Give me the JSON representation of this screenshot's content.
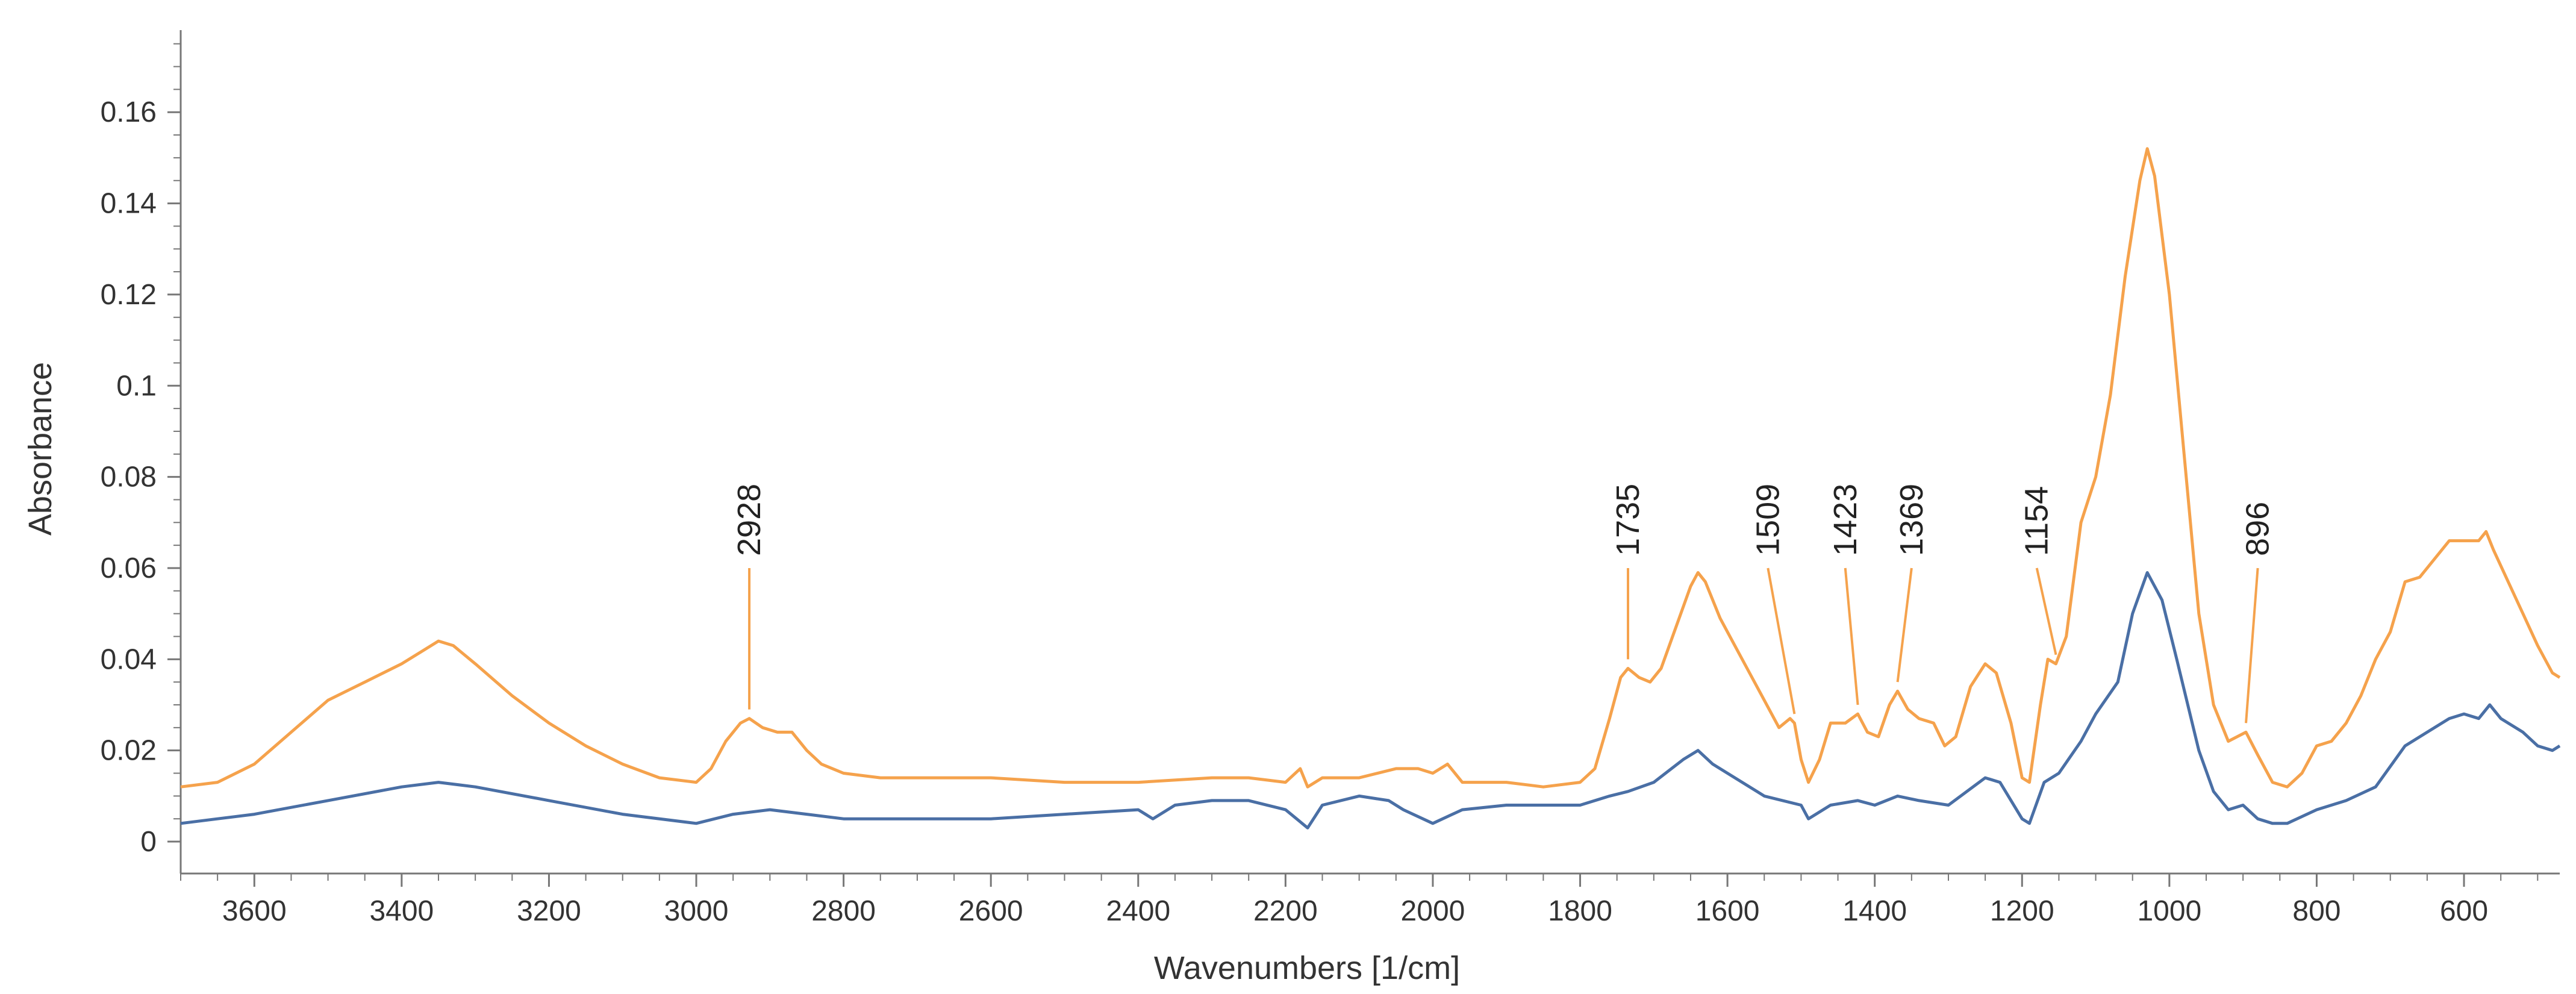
{
  "chart_data": {
    "type": "line",
    "title": "",
    "xlabel": "Wavenumbers [1/cm]",
    "ylabel": "Absorbance",
    "xlim": [
      3700,
      470
    ],
    "ylim": [
      -0.007,
      0.178
    ],
    "x_reversed": true,
    "grid": false,
    "x_ticks": [
      3600,
      3400,
      3200,
      3000,
      2800,
      2600,
      2400,
      2200,
      2000,
      1800,
      1600,
      1400,
      1200,
      1000,
      800,
      600
    ],
    "y_ticks": [
      {
        "value": 0,
        "label": "0"
      },
      {
        "value": 0.02,
        "label": "0.02"
      },
      {
        "value": 0.04,
        "label": "0.04"
      },
      {
        "value": 0.06,
        "label": "0.06"
      },
      {
        "value": 0.08,
        "label": "0.08"
      },
      {
        "value": 0.1,
        "label": "0.1"
      },
      {
        "value": 0.12,
        "label": "0.12"
      },
      {
        "value": 0.14,
        "label": "0.14"
      },
      {
        "value": 0.16,
        "label": "0.16"
      }
    ],
    "series": [
      {
        "color": "#f5a24c",
        "points": [
          [
            3700,
            0.012
          ],
          [
            3650,
            0.013
          ],
          [
            3600,
            0.017
          ],
          [
            3550,
            0.024
          ],
          [
            3500,
            0.031
          ],
          [
            3450,
            0.035
          ],
          [
            3400,
            0.039
          ],
          [
            3370,
            0.042
          ],
          [
            3350,
            0.044
          ],
          [
            3330,
            0.043
          ],
          [
            3300,
            0.039
          ],
          [
            3250,
            0.032
          ],
          [
            3200,
            0.026
          ],
          [
            3150,
            0.021
          ],
          [
            3100,
            0.017
          ],
          [
            3050,
            0.014
          ],
          [
            3000,
            0.013
          ],
          [
            2980,
            0.016
          ],
          [
            2960,
            0.022
          ],
          [
            2940,
            0.026
          ],
          [
            2928,
            0.027
          ],
          [
            2910,
            0.025
          ],
          [
            2890,
            0.024
          ],
          [
            2870,
            0.024
          ],
          [
            2850,
            0.02
          ],
          [
            2830,
            0.017
          ],
          [
            2800,
            0.015
          ],
          [
            2750,
            0.014
          ],
          [
            2700,
            0.014
          ],
          [
            2600,
            0.014
          ],
          [
            2500,
            0.013
          ],
          [
            2400,
            0.013
          ],
          [
            2300,
            0.014
          ],
          [
            2250,
            0.014
          ],
          [
            2200,
            0.013
          ],
          [
            2180,
            0.016
          ],
          [
            2170,
            0.012
          ],
          [
            2150,
            0.014
          ],
          [
            2100,
            0.014
          ],
          [
            2050,
            0.016
          ],
          [
            2020,
            0.016
          ],
          [
            2000,
            0.015
          ],
          [
            1980,
            0.017
          ],
          [
            1960,
            0.013
          ],
          [
            1900,
            0.013
          ],
          [
            1850,
            0.012
          ],
          [
            1800,
            0.013
          ],
          [
            1780,
            0.016
          ],
          [
            1760,
            0.027
          ],
          [
            1745,
            0.036
          ],
          [
            1735,
            0.038
          ],
          [
            1720,
            0.036
          ],
          [
            1705,
            0.035
          ],
          [
            1690,
            0.038
          ],
          [
            1670,
            0.047
          ],
          [
            1650,
            0.056
          ],
          [
            1640,
            0.059
          ],
          [
            1630,
            0.057
          ],
          [
            1610,
            0.049
          ],
          [
            1590,
            0.043
          ],
          [
            1570,
            0.037
          ],
          [
            1550,
            0.031
          ],
          [
            1530,
            0.025
          ],
          [
            1515,
            0.027
          ],
          [
            1509,
            0.026
          ],
          [
            1500,
            0.018
          ],
          [
            1490,
            0.013
          ],
          [
            1475,
            0.018
          ],
          [
            1460,
            0.026
          ],
          [
            1440,
            0.026
          ],
          [
            1423,
            0.028
          ],
          [
            1410,
            0.024
          ],
          [
            1395,
            0.023
          ],
          [
            1380,
            0.03
          ],
          [
            1369,
            0.033
          ],
          [
            1355,
            0.029
          ],
          [
            1340,
            0.027
          ],
          [
            1320,
            0.026
          ],
          [
            1305,
            0.021
          ],
          [
            1290,
            0.023
          ],
          [
            1270,
            0.034
          ],
          [
            1250,
            0.039
          ],
          [
            1235,
            0.037
          ],
          [
            1215,
            0.026
          ],
          [
            1200,
            0.014
          ],
          [
            1190,
            0.013
          ],
          [
            1175,
            0.03
          ],
          [
            1165,
            0.04
          ],
          [
            1154,
            0.039
          ],
          [
            1140,
            0.045
          ],
          [
            1120,
            0.07
          ],
          [
            1100,
            0.08
          ],
          [
            1080,
            0.098
          ],
          [
            1060,
            0.124
          ],
          [
            1040,
            0.145
          ],
          [
            1030,
            0.152
          ],
          [
            1020,
            0.146
          ],
          [
            1000,
            0.12
          ],
          [
            980,
            0.085
          ],
          [
            960,
            0.05
          ],
          [
            940,
            0.03
          ],
          [
            920,
            0.022
          ],
          [
            896,
            0.024
          ],
          [
            880,
            0.019
          ],
          [
            860,
            0.013
          ],
          [
            840,
            0.012
          ],
          [
            820,
            0.015
          ],
          [
            800,
            0.021
          ],
          [
            780,
            0.022
          ],
          [
            760,
            0.026
          ],
          [
            740,
            0.032
          ],
          [
            720,
            0.04
          ],
          [
            700,
            0.046
          ],
          [
            680,
            0.057
          ],
          [
            660,
            0.058
          ],
          [
            640,
            0.062
          ],
          [
            620,
            0.066
          ],
          [
            600,
            0.066
          ],
          [
            580,
            0.066
          ],
          [
            570,
            0.068
          ],
          [
            560,
            0.064
          ],
          [
            540,
            0.057
          ],
          [
            520,
            0.05
          ],
          [
            500,
            0.043
          ],
          [
            480,
            0.037
          ],
          [
            470,
            0.036
          ]
        ]
      },
      {
        "color": "#4a6fa5",
        "points": [
          [
            3700,
            0.004
          ],
          [
            3650,
            0.005
          ],
          [
            3600,
            0.006
          ],
          [
            3500,
            0.009
          ],
          [
            3400,
            0.012
          ],
          [
            3350,
            0.013
          ],
          [
            3300,
            0.012
          ],
          [
            3200,
            0.009
          ],
          [
            3100,
            0.006
          ],
          [
            3000,
            0.004
          ],
          [
            2950,
            0.006
          ],
          [
            2900,
            0.007
          ],
          [
            2850,
            0.006
          ],
          [
            2800,
            0.005
          ],
          [
            2700,
            0.005
          ],
          [
            2600,
            0.005
          ],
          [
            2500,
            0.006
          ],
          [
            2400,
            0.007
          ],
          [
            2380,
            0.005
          ],
          [
            2350,
            0.008
          ],
          [
            2300,
            0.009
          ],
          [
            2250,
            0.009
          ],
          [
            2200,
            0.007
          ],
          [
            2170,
            0.003
          ],
          [
            2150,
            0.008
          ],
          [
            2100,
            0.01
          ],
          [
            2060,
            0.009
          ],
          [
            2040,
            0.007
          ],
          [
            2000,
            0.004
          ],
          [
            1960,
            0.007
          ],
          [
            1900,
            0.008
          ],
          [
            1800,
            0.008
          ],
          [
            1760,
            0.01
          ],
          [
            1735,
            0.011
          ],
          [
            1700,
            0.013
          ],
          [
            1660,
            0.018
          ],
          [
            1640,
            0.02
          ],
          [
            1620,
            0.017
          ],
          [
            1580,
            0.013
          ],
          [
            1550,
            0.01
          ],
          [
            1500,
            0.008
          ],
          [
            1490,
            0.005
          ],
          [
            1460,
            0.008
          ],
          [
            1423,
            0.009
          ],
          [
            1400,
            0.008
          ],
          [
            1369,
            0.01
          ],
          [
            1340,
            0.009
          ],
          [
            1300,
            0.008
          ],
          [
            1250,
            0.014
          ],
          [
            1230,
            0.013
          ],
          [
            1200,
            0.005
          ],
          [
            1190,
            0.004
          ],
          [
            1170,
            0.013
          ],
          [
            1150,
            0.015
          ],
          [
            1120,
            0.022
          ],
          [
            1100,
            0.028
          ],
          [
            1070,
            0.035
          ],
          [
            1050,
            0.05
          ],
          [
            1030,
            0.059
          ],
          [
            1010,
            0.053
          ],
          [
            990,
            0.04
          ],
          [
            960,
            0.02
          ],
          [
            940,
            0.011
          ],
          [
            920,
            0.007
          ],
          [
            900,
            0.008
          ],
          [
            880,
            0.005
          ],
          [
            860,
            0.004
          ],
          [
            840,
            0.004
          ],
          [
            800,
            0.007
          ],
          [
            760,
            0.009
          ],
          [
            720,
            0.012
          ],
          [
            680,
            0.021
          ],
          [
            650,
            0.024
          ],
          [
            620,
            0.027
          ],
          [
            600,
            0.028
          ],
          [
            580,
            0.027
          ],
          [
            565,
            0.03
          ],
          [
            550,
            0.027
          ],
          [
            520,
            0.024
          ],
          [
            500,
            0.021
          ],
          [
            480,
            0.02
          ],
          [
            470,
            0.021
          ]
        ]
      }
    ],
    "annotations": [
      {
        "label": "2928",
        "x": 2928,
        "line_top": 0.06,
        "line_bottom": 0.029
      },
      {
        "label": "1735",
        "x": 1735,
        "line_top": 0.06,
        "line_bottom": 0.04
      },
      {
        "label": "1509",
        "x": 1509,
        "line_top": 0.06,
        "line_bottom": 0.028,
        "x_text": 1545
      },
      {
        "label": "1423",
        "x": 1423,
        "line_top": 0.06,
        "line_bottom": 0.03,
        "x_text": 1440
      },
      {
        "label": "1369",
        "x": 1369,
        "line_top": 0.06,
        "line_bottom": 0.035,
        "x_text": 1350
      },
      {
        "label": "1154",
        "x": 1154,
        "line_top": 0.06,
        "line_bottom": 0.041,
        "x_text": 1180
      },
      {
        "label": "896",
        "x": 896,
        "line_top": 0.06,
        "line_bottom": 0.026,
        "x_text": 880
      }
    ]
  }
}
